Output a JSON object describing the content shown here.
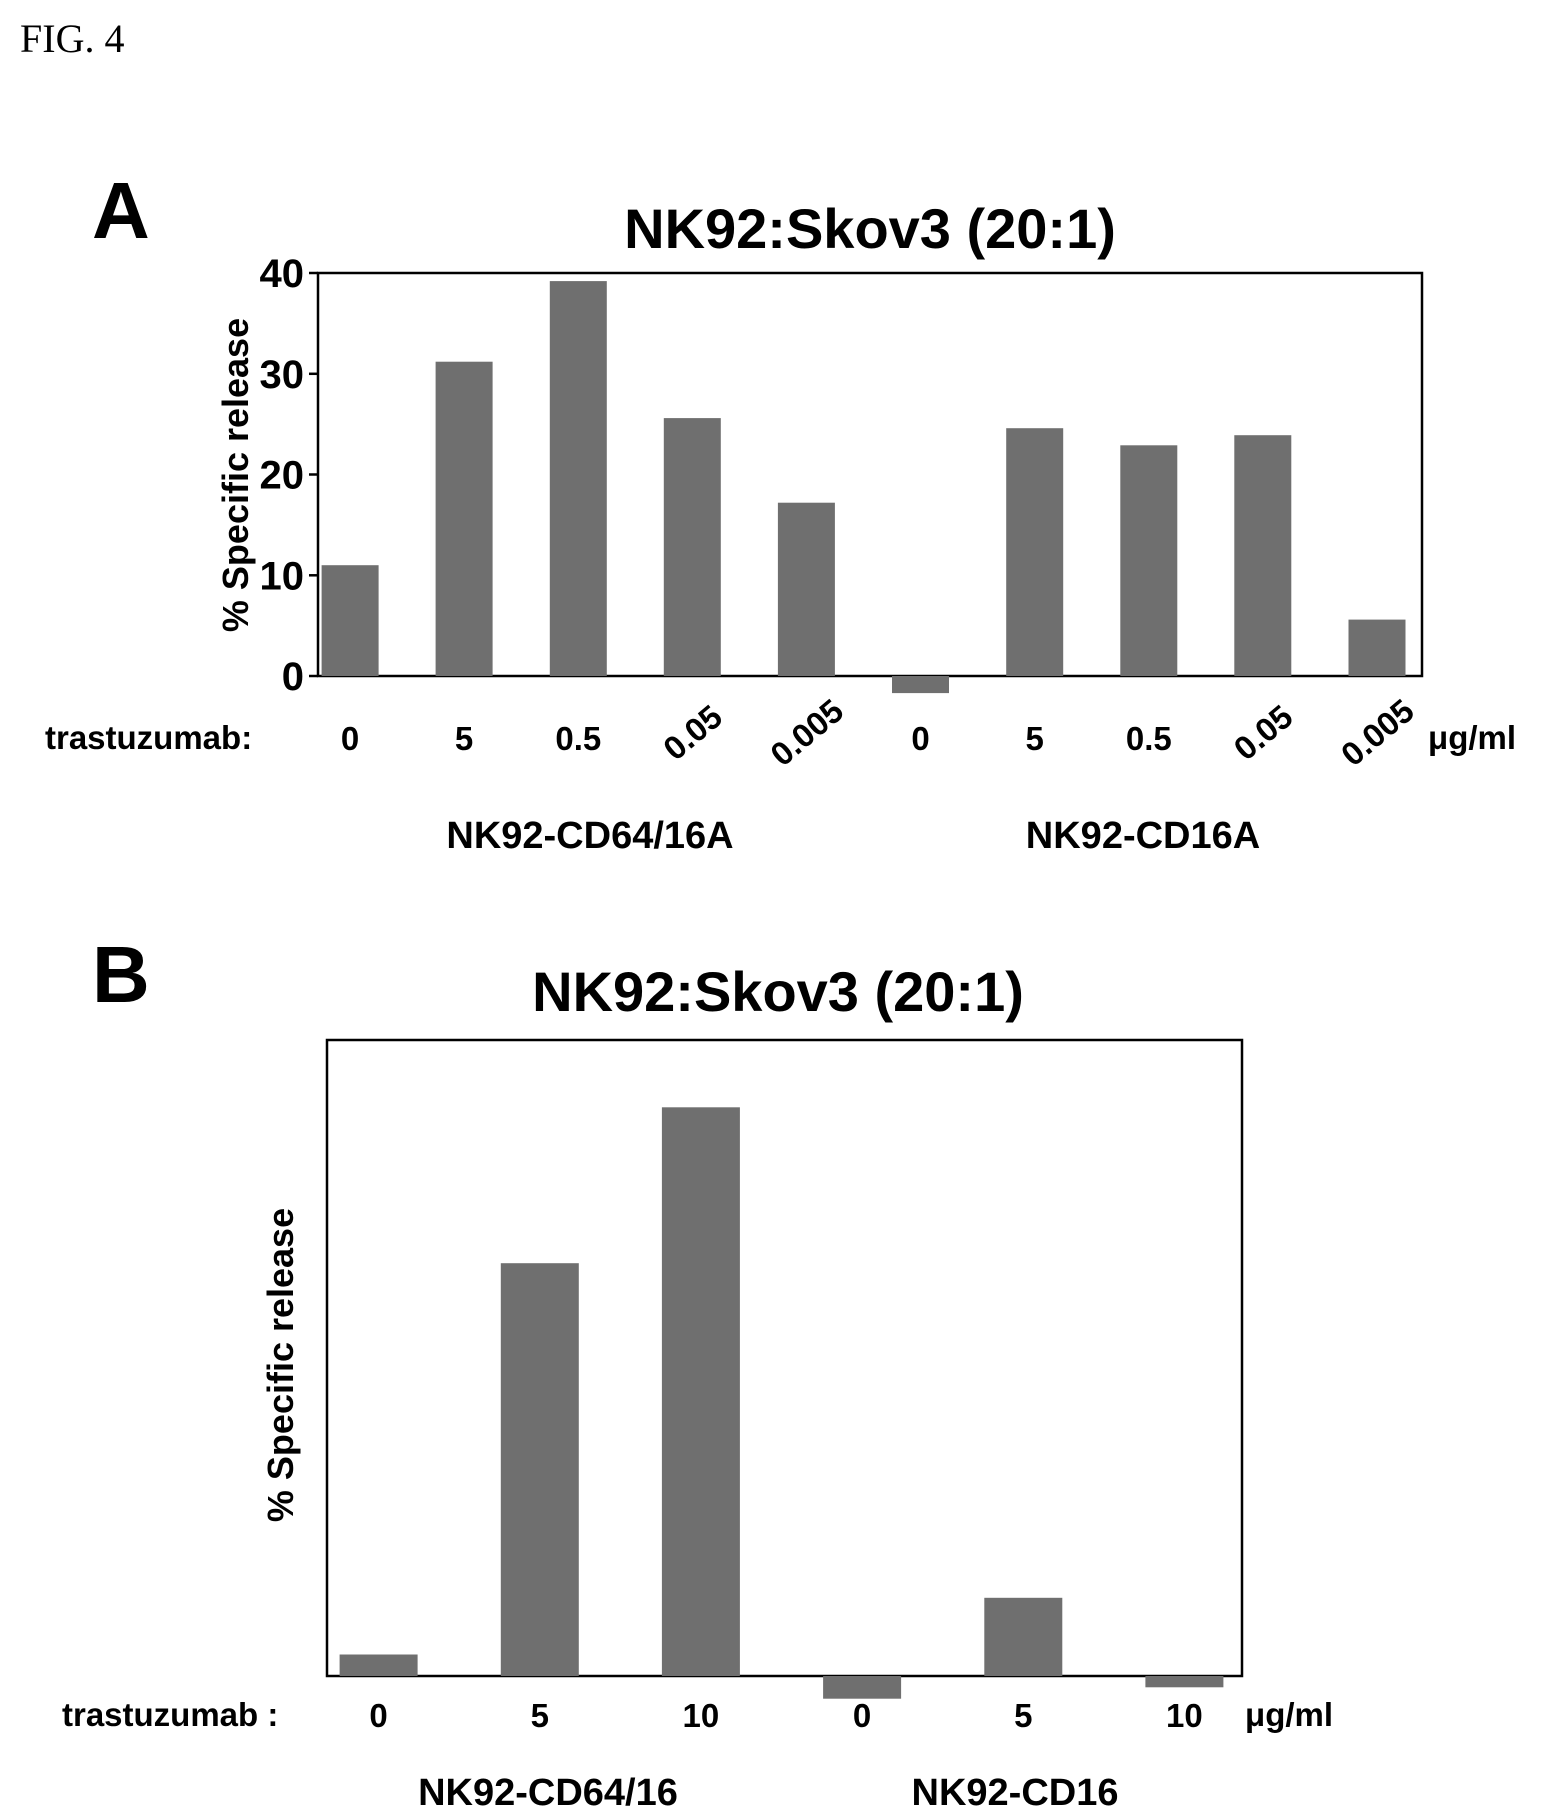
{
  "figure_label": "FIG. 4",
  "colors": {
    "bar": "#6f6f6f",
    "axis": "#000000",
    "text": "#000000"
  },
  "chart_data": [
    {
      "panel": "A",
      "type": "bar",
      "title": "NK92:Skov3 (20:1)",
      "ylabel": "% Specific release",
      "ylim": [
        0,
        40
      ],
      "yticks": [
        0,
        10,
        20,
        30,
        40
      ],
      "x_prefix": "trastuzumab:",
      "unit": "μg/ml",
      "categories": [
        "0",
        "5",
        "0.5",
        "0.05",
        "0.005",
        "0",
        "5",
        "0.5",
        "0.05",
        "0.005"
      ],
      "values": [
        11,
        31.2,
        39.2,
        25.6,
        17.2,
        -1.7,
        24.6,
        22.9,
        23.9,
        5.6
      ],
      "groups": [
        {
          "name": "NK92-CD64/16A",
          "members": [
            0,
            1,
            2,
            3,
            4
          ]
        },
        {
          "name": "NK92-CD16A",
          "members": [
            5,
            6,
            7,
            8,
            9
          ]
        }
      ],
      "grid": false
    },
    {
      "panel": "B",
      "type": "bar",
      "title": "NK92:Skov3 (20:1)",
      "ylabel": "% Specific release",
      "ylim": [
        0,
        100
      ],
      "yticks": [],
      "x_prefix": "trastuzumab :",
      "unit": "μg/ml",
      "categories": [
        "0",
        "5",
        "10",
        "0",
        "5",
        "10"
      ],
      "values": [
        3.8,
        72.8,
        100.3,
        -4,
        13.8,
        -2
      ],
      "groups": [
        {
          "name": "NK92-CD64/16",
          "members": [
            0,
            1,
            2
          ]
        },
        {
          "name": "NK92-CD16",
          "members": [
            3,
            4,
            5
          ]
        }
      ],
      "grid": false
    }
  ]
}
